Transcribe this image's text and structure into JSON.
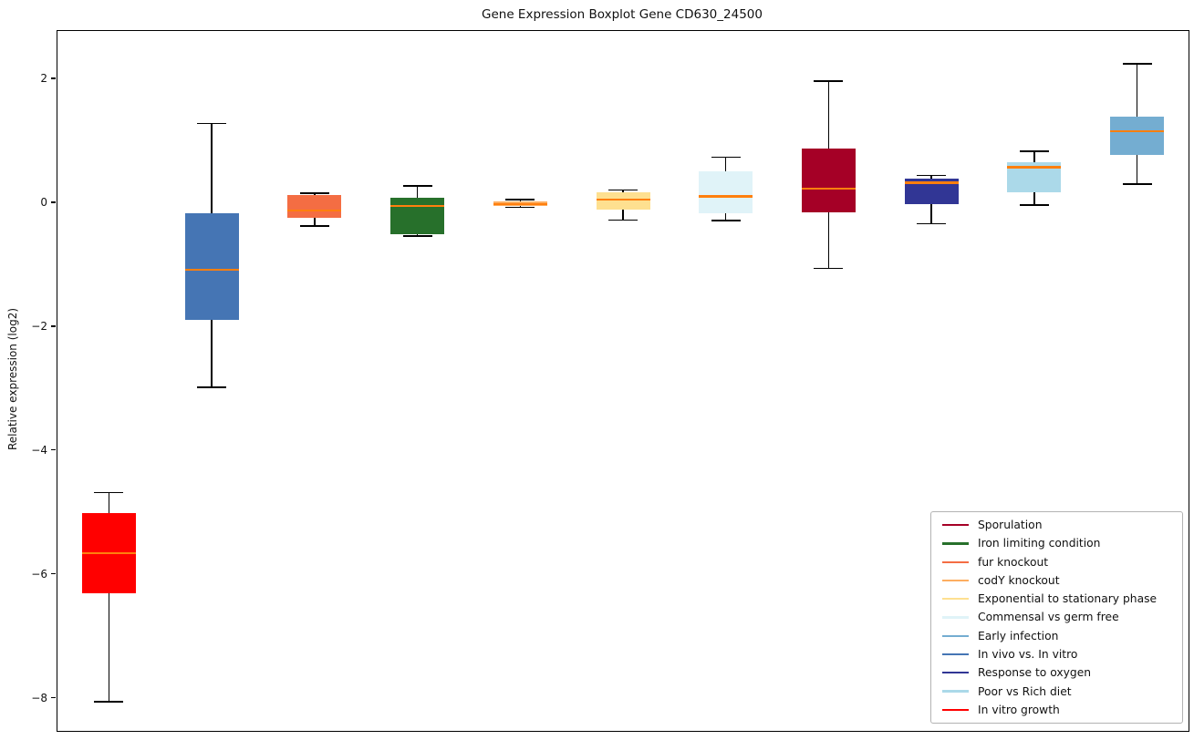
{
  "title": "Gene Expression Boxplot Gene CD630_24500",
  "ylabel": "Relative expression (log2)",
  "chart_data": {
    "type": "boxplot",
    "title": "Gene Expression Boxplot Gene CD630_24500",
    "xlabel": "",
    "ylabel": "Relative expression (log2)",
    "ylim": [
      -8.52,
      2.78
    ],
    "yticks": [
      2,
      0,
      -2,
      -4,
      -6,
      -8
    ],
    "grid": false,
    "legend_position": "lower right",
    "median_color": "#ff7f0e",
    "whisker_color": "#000000",
    "series": [
      {
        "name": "In vitro growth",
        "color": "#ff0000",
        "whislo": -8.05,
        "q1": -6.3,
        "med": -5.65,
        "q3": -5.0,
        "whishi": -4.67
      },
      {
        "name": "In vivo vs. In vitro",
        "color": "#4575b4",
        "whislo": -2.97,
        "q1": -1.88,
        "med": -1.08,
        "q3": -0.17,
        "whishi": 1.29
      },
      {
        "name": "fur knockout",
        "color": "#f46d43",
        "whislo": -0.37,
        "q1": -0.23,
        "med": -0.12,
        "q3": 0.13,
        "whishi": 0.16
      },
      {
        "name": "Iron limiting condition",
        "color": "#27702b",
        "whislo": -0.53,
        "q1": -0.5,
        "med": -0.04,
        "q3": 0.09,
        "whishi": 0.28
      },
      {
        "name": "codY knockout",
        "color": "#fdae61",
        "whislo": -0.07,
        "q1": -0.04,
        "med": -0.01,
        "q3": 0.03,
        "whishi": 0.06
      },
      {
        "name": "Exponential to stationary phase",
        "color": "#fee090",
        "whislo": -0.27,
        "q1": -0.11,
        "med": 0.06,
        "q3": 0.17,
        "whishi": 0.21
      },
      {
        "name": "Commensal vs germ free",
        "color": "#e0f3f8",
        "whislo": -0.28,
        "q1": -0.16,
        "med": 0.11,
        "q3": 0.52,
        "whishi": 0.74
      },
      {
        "name": "Sporulation",
        "color": "#a50026",
        "whislo": -1.05,
        "q1": -0.15,
        "med": 0.24,
        "q3": 0.88,
        "whishi": 1.97
      },
      {
        "name": "Response to oxygen",
        "color": "#313695",
        "whislo": -0.33,
        "q1": -0.01,
        "med": 0.33,
        "q3": 0.4,
        "whishi": 0.45
      },
      {
        "name": "Poor vs Rich diet",
        "color": "#abd9e9",
        "whislo": -0.03,
        "q1": 0.17,
        "med": 0.58,
        "q3": 0.66,
        "whishi": 0.84
      },
      {
        "name": "Early infection",
        "color": "#74add1",
        "whislo": 0.31,
        "q1": 0.78,
        "med": 1.16,
        "q3": 1.4,
        "whishi": 2.25
      }
    ],
    "legend": [
      {
        "label": "Sporulation",
        "color": "#a50026"
      },
      {
        "label": "Iron limiting condition",
        "color": "#27702b"
      },
      {
        "label": "fur knockout",
        "color": "#f46d43"
      },
      {
        "label": "codY knockout",
        "color": "#fdae61"
      },
      {
        "label": "Exponential to stationary phase",
        "color": "#fee090"
      },
      {
        "label": "Commensal vs germ free",
        "color": "#e0f3f8"
      },
      {
        "label": "Early infection",
        "color": "#74add1"
      },
      {
        "label": "In vivo vs. In vitro",
        "color": "#4575b4"
      },
      {
        "label": "Response to oxygen",
        "color": "#313695"
      },
      {
        "label": "Poor vs Rich diet",
        "color": "#abd9e9"
      },
      {
        "label": "In vitro growth",
        "color": "#ff0000"
      }
    ]
  }
}
